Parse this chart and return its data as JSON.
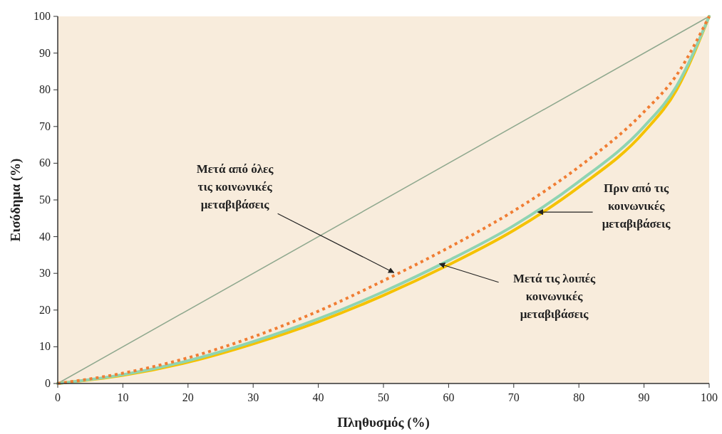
{
  "chart_data": {
    "type": "line",
    "xlabel": "Πληθυσμός (%)",
    "ylabel": "Εισόδημα (%)",
    "xlim": [
      0,
      100
    ],
    "ylim": [
      0,
      100
    ],
    "xticks": [
      0,
      10,
      20,
      30,
      40,
      50,
      60,
      70,
      80,
      90,
      100
    ],
    "yticks": [
      0,
      10,
      20,
      30,
      40,
      50,
      60,
      70,
      80,
      90,
      100
    ],
    "grid": false,
    "series": [
      {
        "color": "#8fa88e",
        "x": [
          0,
          100
        ],
        "values": [
          0,
          100
        ],
        "line_style": "solid"
      },
      {
        "color": "#f5c200",
        "x": [
          0,
          10,
          20,
          30,
          40,
          50,
          60,
          70,
          80,
          90,
          95,
          100
        ],
        "values": [
          0,
          2.2,
          5.8,
          10.8,
          16.8,
          24,
          32.3,
          41.7,
          53.5,
          68.5,
          80,
          100
        ],
        "line_style": "solid"
      },
      {
        "color": "#8fd4b2",
        "x": [
          0,
          10,
          20,
          30,
          40,
          50,
          60,
          70,
          80,
          90,
          95,
          100
        ],
        "values": [
          0,
          2.4,
          6.2,
          11.4,
          17.6,
          25,
          33.5,
          43,
          55,
          70,
          81,
          100
        ],
        "line_style": "solid"
      },
      {
        "color": "#f07d33",
        "x": [
          0,
          10,
          20,
          30,
          40,
          50,
          60,
          70,
          80,
          90,
          95,
          100
        ],
        "values": [
          0,
          2.8,
          7,
          12.7,
          19.7,
          28,
          37,
          47,
          59,
          74,
          84,
          100
        ],
        "line_style": "dotted"
      }
    ],
    "annotations": [
      {
        "text": "Μετά από όλες\nτις κοινωνικές\nμεταβιβάσεις",
        "x": 51.6,
        "y": 30.2
      },
      {
        "text": "Πριν από τις\nκοινωνικές\nμεταβιβάσεις",
        "x": 73.7,
        "y": 46.7
      },
      {
        "text": "Μετά τις λοιπές\nκοινωνικές\nμεταβιβάσεις",
        "x": 58.6,
        "y": 32.6
      }
    ]
  }
}
